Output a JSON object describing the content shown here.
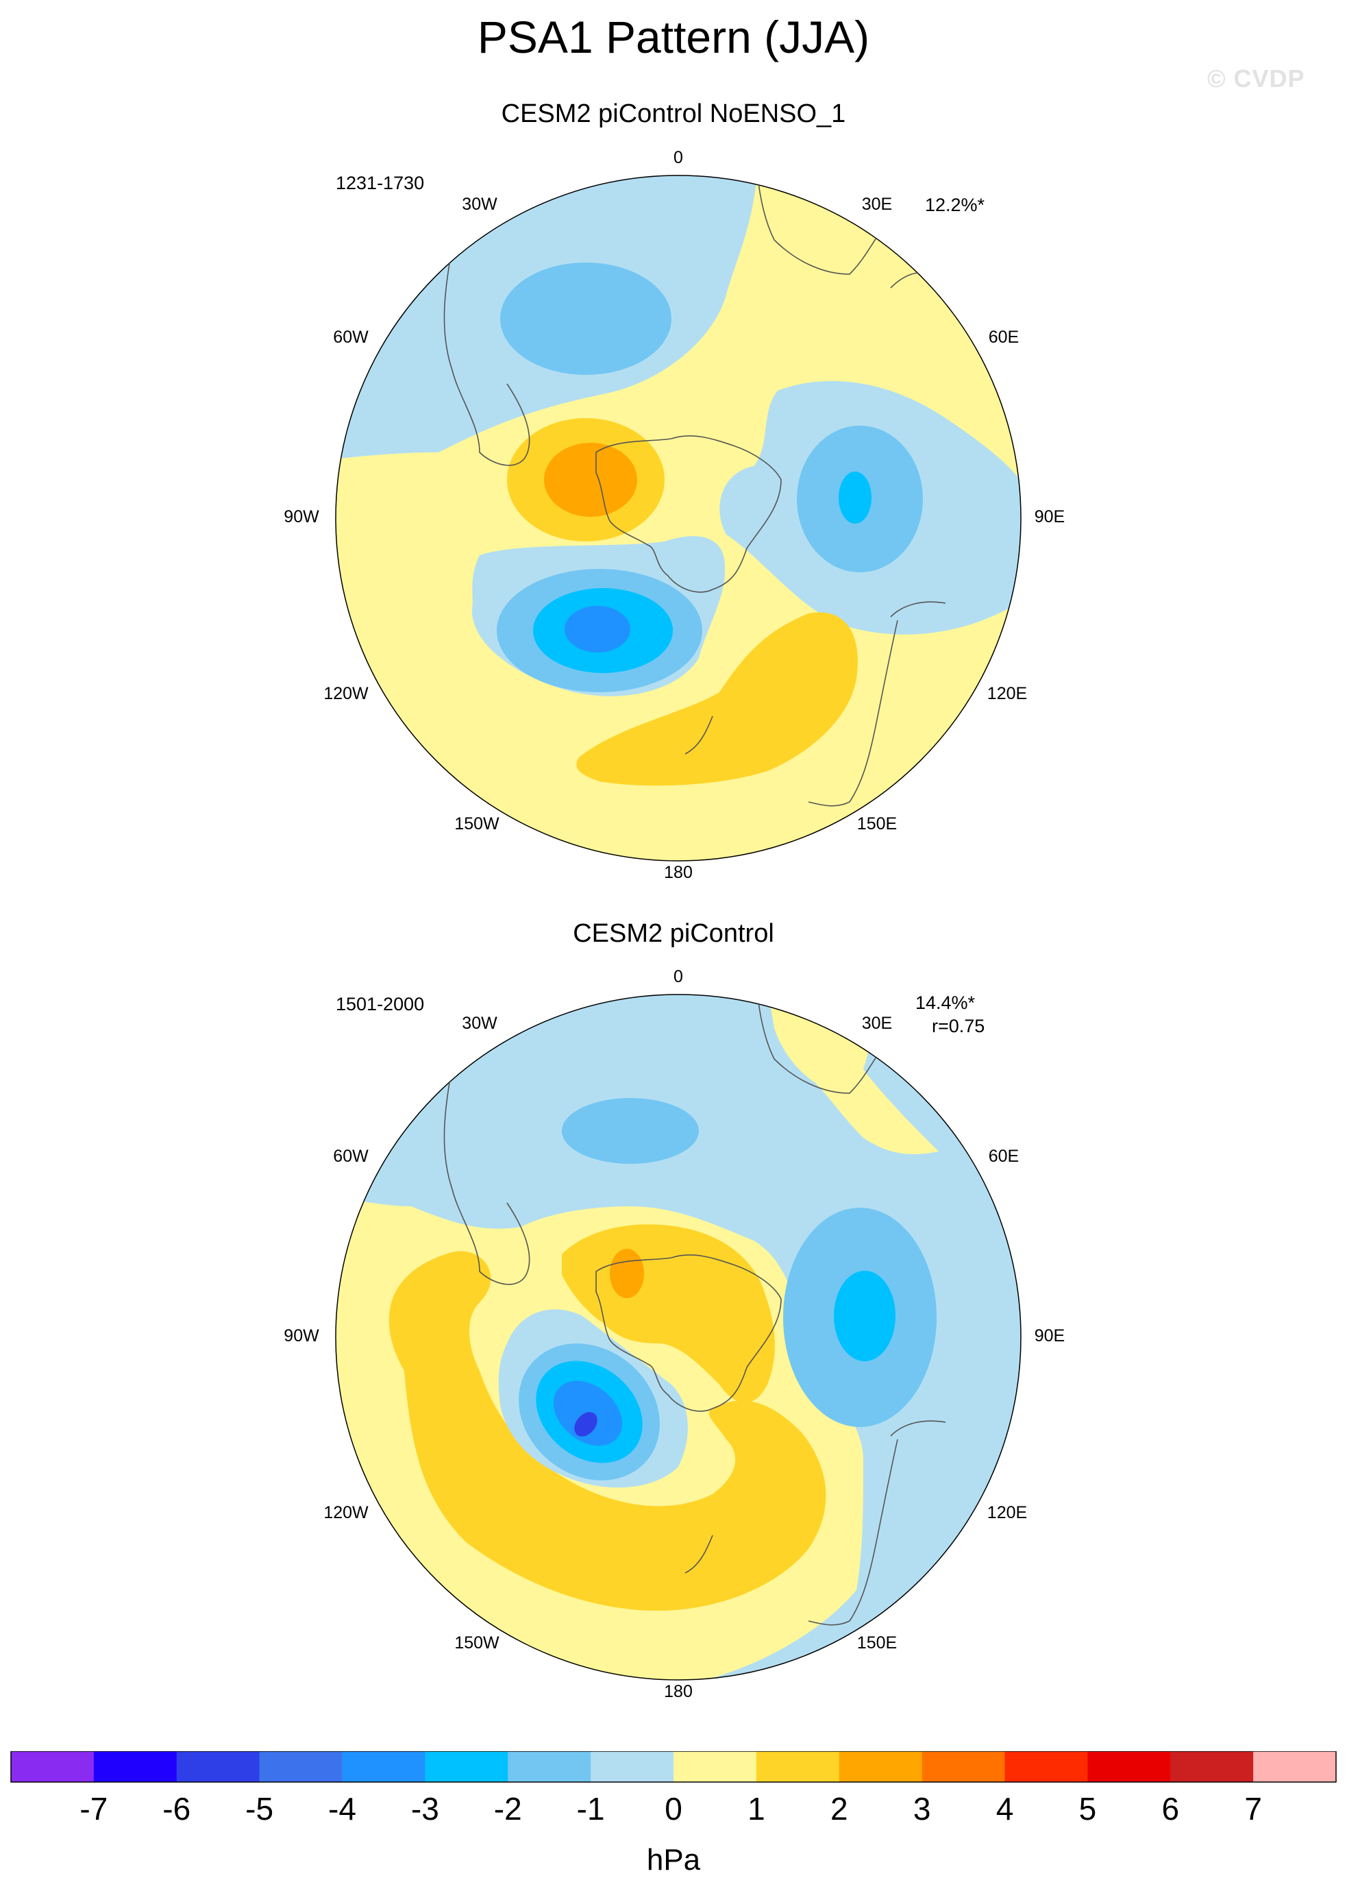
{
  "figure": {
    "title": "PSA1 Pattern (JJA)",
    "watermark": "© CVDP",
    "units": "hPa"
  },
  "longitude_labels": {
    "deg_0": "0",
    "deg_30e": "30E",
    "deg_60e": "60E",
    "deg_90e": "90E",
    "deg_120e": "120E",
    "deg_150e": "150E",
    "deg_180": "180",
    "deg_150w": "150W",
    "deg_120w": "120W",
    "deg_90w": "90W",
    "deg_60w": "60W",
    "deg_30w": "30W"
  },
  "panels": [
    {
      "title": "CESM2 piControl NoENSO_1",
      "years": "1231-1730",
      "pct_variance": "12.2%*"
    },
    {
      "title": "CESM2 piControl",
      "years": "1501-2000",
      "pct_variance": "14.4%*",
      "pattern_correlation": "r=0.75"
    }
  ],
  "colorbar": {
    "colors": [
      "#8a2bf2",
      "#1f00ff",
      "#2f3fe8",
      "#3d72ed",
      "#1f92ff",
      "#00c1ff",
      "#73c6f2",
      "#b3def2",
      "#fff799",
      "#ffd429",
      "#ffa600",
      "#ff7200",
      "#ff2b00",
      "#e80000",
      "#cc1f1f",
      "#ffb3b3"
    ],
    "labels": [
      "-7",
      "-6",
      "-5",
      "-4",
      "-3",
      "-2",
      "-1",
      "0",
      "1",
      "2",
      "3",
      "4",
      "5",
      "6",
      "7"
    ]
  },
  "legend_colors": {
    "neg1": "#b3def2",
    "neg2": "#73c6f2",
    "neg3": "#00c1ff",
    "neg4": "#1f92ff",
    "neg5": "#2f3fe8",
    "pos0": "#fff799",
    "pos1": "#ffd429",
    "pos2": "#ffa600"
  }
}
